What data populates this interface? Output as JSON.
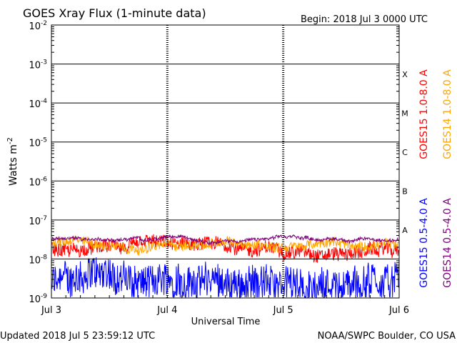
{
  "chart_data": {
    "type": "line",
    "title": "GOES Xray Flux (1-minute data)",
    "begin_label": "Begin:  2018 Jul 3 0000 UTC",
    "ylabel_base": "Watts m",
    "ylabel_exp": "-2",
    "xlabel": "Universal Time",
    "ylim": [
      1e-09,
      0.01
    ],
    "y_scale": "log",
    "y_ticks": [
      {
        "base": "10",
        "exp": "-9"
      },
      {
        "base": "10",
        "exp": "-8"
      },
      {
        "base": "10",
        "exp": "-7"
      },
      {
        "base": "10",
        "exp": "-6"
      },
      {
        "base": "10",
        "exp": "-5"
      },
      {
        "base": "10",
        "exp": "-4"
      },
      {
        "base": "10",
        "exp": "-3"
      },
      {
        "base": "10",
        "exp": "-2"
      }
    ],
    "x_ticks": [
      "Jul 3",
      "Jul 4",
      "Jul 5",
      "Jul 6"
    ],
    "flare_classes": [
      {
        "label": "A",
        "level": 1e-08
      },
      {
        "label": "B",
        "level": 1e-07
      },
      {
        "label": "C",
        "level": 1e-06
      },
      {
        "label": "M",
        "level": 1e-05
      },
      {
        "label": "X",
        "level": 0.0001
      }
    ],
    "series": [
      {
        "name": "GOES15 1.0-8.0 A",
        "color": "#ff0000",
        "baseline": 1.8e-08,
        "spread": 0.35
      },
      {
        "name": "GOES14 1.0-8.0 A",
        "color": "#ffa500",
        "baseline": 2.4e-08,
        "spread": 0.25
      },
      {
        "name": "GOES15 0.5-4.0 A",
        "color": "#0000ff",
        "baseline": 2.5e-09,
        "spread": 0.9
      },
      {
        "name": "GOES14 0.5-4.0 A",
        "color": "#800080",
        "baseline": 3.3e-08,
        "spread": 0.08
      }
    ]
  },
  "footer": {
    "updated": "Updated 2018 Jul  5 23:59:12 UTC",
    "source": "NOAA/SWPC Boulder, CO USA"
  }
}
